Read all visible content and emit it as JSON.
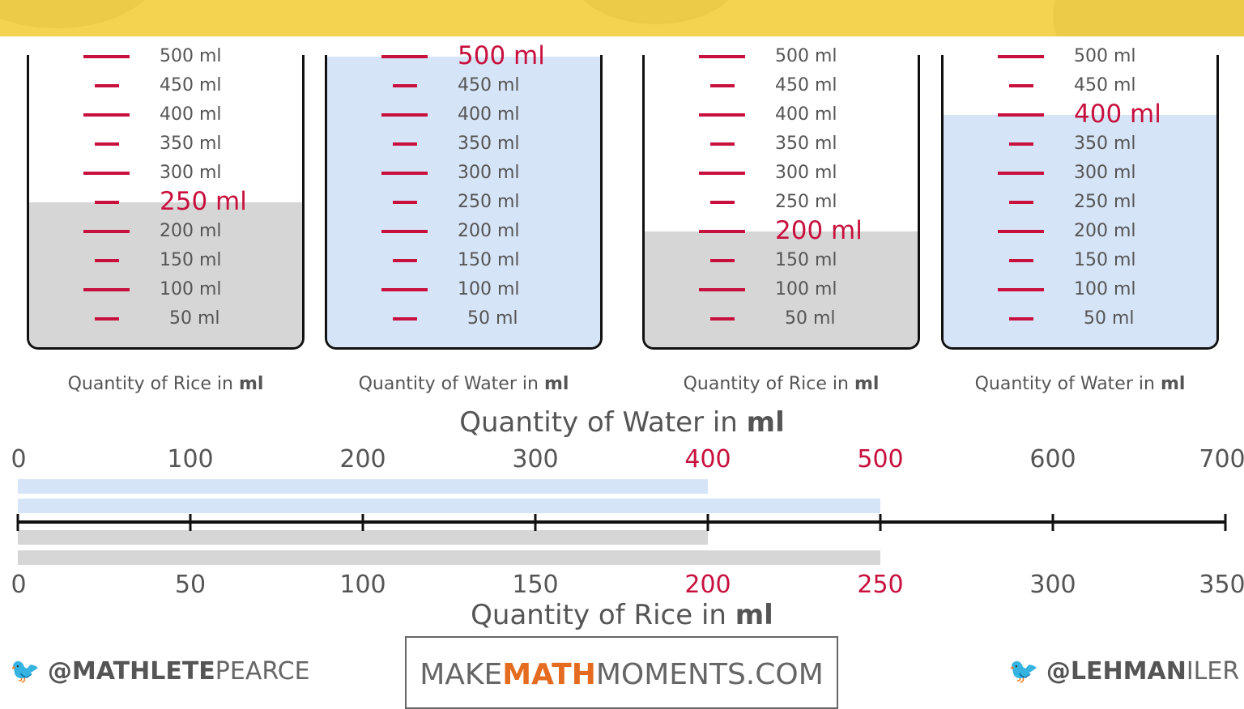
{
  "colors": {
    "banner": "#f3d34f",
    "tick": "#c8103e",
    "water": "#d6e4f7",
    "rice": "#d6d6d6"
  },
  "beakers": [
    {
      "caption_prefix": "Quantity of Rice in",
      "caption_unit": "ml",
      "level": 250,
      "fill": "rice"
    },
    {
      "caption_prefix": "Quantity of Water in",
      "caption_unit": "ml",
      "level": 500,
      "fill": "water"
    },
    {
      "caption_prefix": "Quantity of Rice in",
      "caption_unit": "ml",
      "level": 200,
      "fill": "rice"
    },
    {
      "caption_prefix": "Quantity of Water in",
      "caption_unit": "ml",
      "level": 400,
      "fill": "water"
    }
  ],
  "tick_labels": [
    "500 ml",
    "450 ml",
    "400 ml",
    "350 ml",
    "300 ml",
    "250 ml",
    "200 ml",
    "150 ml",
    "100 ml",
    "50 ml"
  ],
  "number_line": {
    "water_title_prefix": "Quantity of Water in",
    "water_title_unit": "ml",
    "rice_title_prefix": "Quantity of Rice in",
    "rice_title_unit": "ml",
    "water_ticks": [
      "0",
      "100",
      "200",
      "300",
      "400",
      "500",
      "600",
      "700"
    ],
    "rice_ticks": [
      "0",
      "50",
      "100",
      "150",
      "200",
      "250",
      "300",
      "350"
    ],
    "highlighted_index": [
      4,
      5
    ],
    "bars": [
      {
        "type": "water",
        "value": 400
      },
      {
        "type": "water",
        "value": 500
      },
      {
        "type": "rice",
        "value": 200
      },
      {
        "type": "rice",
        "value": 250
      }
    ]
  },
  "footer": {
    "left_bold": "@MATHLETE",
    "left_rest": "PEARCE",
    "center_a": "MAKE",
    "center_b": "MATH",
    "center_c": "MOMENTS.COM",
    "right_bold": "@LEHMAN",
    "right_rest": "ILER"
  }
}
